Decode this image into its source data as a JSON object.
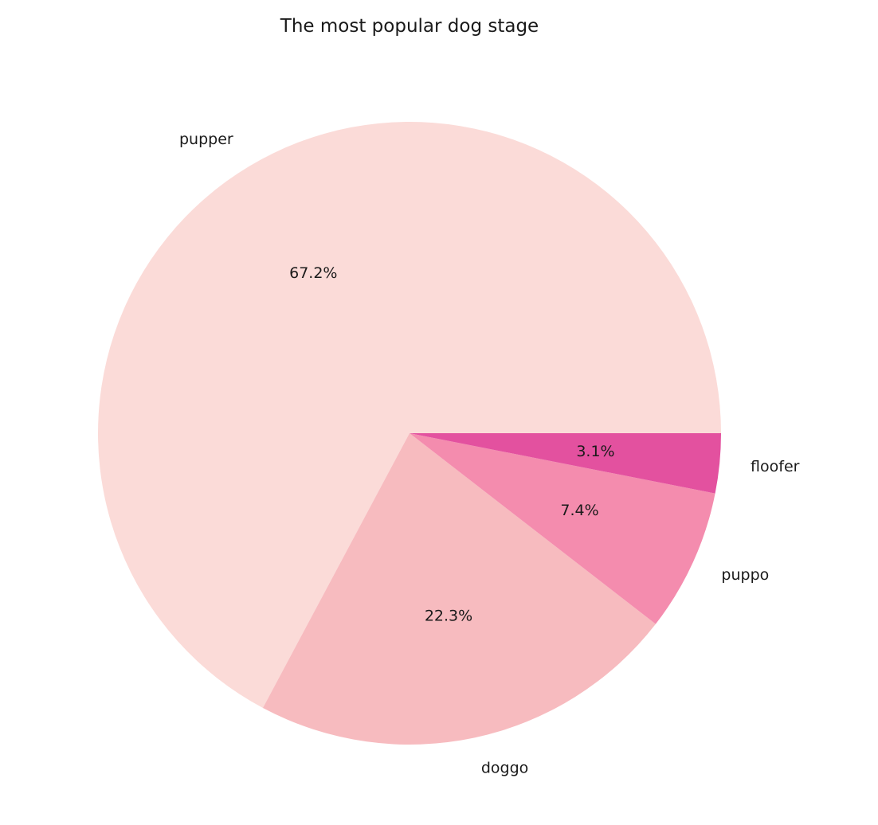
{
  "chart_data": {
    "type": "pie",
    "title": "The most popular dog stage",
    "slices": [
      {
        "label": "pupper",
        "value": 67.2,
        "pct_label": "67.2%",
        "color": "#fbdbd8"
      },
      {
        "label": "doggo",
        "value": 22.3,
        "pct_label": "22.3%",
        "color": "#f7bbbf"
      },
      {
        "label": "puppo",
        "value": 7.4,
        "pct_label": "7.4%",
        "color": "#f48cae"
      },
      {
        "label": "floofer",
        "value": 3.1,
        "pct_label": "3.1%",
        "color": "#e3519f"
      }
    ],
    "start_angle_deg": 0,
    "direction": "counterclockwise",
    "legend": "none"
  }
}
